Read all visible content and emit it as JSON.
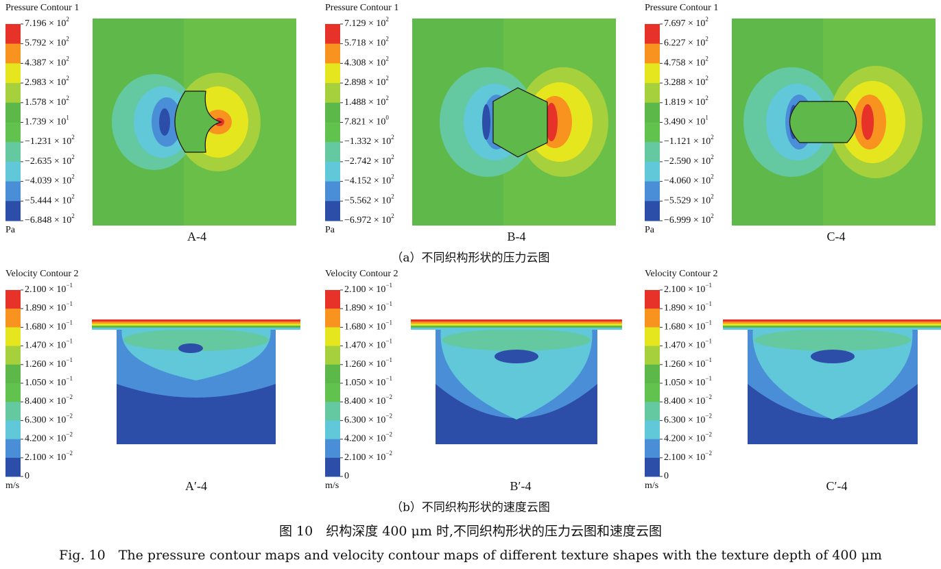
{
  "pressure": {
    "panels": [
      {
        "title": "Pressure Contour 1",
        "unit": "Pa",
        "caption": "A-4",
        "levels": [
          {
            "base": "7.196 × 10",
            "exp": "2"
          },
          {
            "base": "5.792 × 10",
            "exp": "2"
          },
          {
            "base": "4.387 × 10",
            "exp": "2"
          },
          {
            "base": "2.983 × 10",
            "exp": "2"
          },
          {
            "base": "1.578 × 10",
            "exp": "2"
          },
          {
            "base": "1.739 × 10",
            "exp": "1"
          },
          {
            "base": "−1.231 × 10",
            "exp": "2"
          },
          {
            "base": "−2.635 × 10",
            "exp": "2"
          },
          {
            "base": "−4.039 × 10",
            "exp": "2"
          },
          {
            "base": "−5.444 × 10",
            "exp": "2"
          },
          {
            "base": "−6.848 × 10",
            "exp": "2"
          }
        ]
      },
      {
        "title": "Pressure Contour 1",
        "unit": "Pa",
        "caption": "B-4",
        "levels": [
          {
            "base": "7.129 × 10",
            "exp": "2"
          },
          {
            "base": "5.718 × 10",
            "exp": "2"
          },
          {
            "base": "4.308 × 10",
            "exp": "2"
          },
          {
            "base": "2.898 × 10",
            "exp": "2"
          },
          {
            "base": "1.488 × 10",
            "exp": "2"
          },
          {
            "base": "7.821 × 10",
            "exp": "0"
          },
          {
            "base": "−1.332 × 10",
            "exp": "2"
          },
          {
            "base": "−2.742 × 10",
            "exp": "2"
          },
          {
            "base": "−4.152 × 10",
            "exp": "2"
          },
          {
            "base": "−5.562 × 10",
            "exp": "2"
          },
          {
            "base": "−6.972 × 10",
            "exp": "2"
          }
        ]
      },
      {
        "title": "Pressure Contour 1",
        "unit": "Pa",
        "caption": "C-4",
        "levels": [
          {
            "base": "7.697 × 10",
            "exp": "2"
          },
          {
            "base": "6.227 × 10",
            "exp": "2"
          },
          {
            "base": "4.758 × 10",
            "exp": "2"
          },
          {
            "base": "3.288 × 10",
            "exp": "2"
          },
          {
            "base": "1.819 × 10",
            "exp": "2"
          },
          {
            "base": "3.490 × 10",
            "exp": "1"
          },
          {
            "base": "−1.121 × 10",
            "exp": "2"
          },
          {
            "base": "−2.590 × 10",
            "exp": "2"
          },
          {
            "base": "−4.060 × 10",
            "exp": "2"
          },
          {
            "base": "−5.529 × 10",
            "exp": "2"
          },
          {
            "base": "−6.999 × 10",
            "exp": "2"
          }
        ]
      }
    ],
    "subcaption": "（a）不同织构形状的压力云图"
  },
  "velocity": {
    "panels": [
      {
        "title": "Velocity Contour 2",
        "unit": "m/s",
        "caption": "A′-4",
        "levels": [
          {
            "base": "2.100 × 10",
            "exp": "−1"
          },
          {
            "base": "1.890 × 10",
            "exp": "−1"
          },
          {
            "base": "1.680 × 10",
            "exp": "−1"
          },
          {
            "base": "1.470 × 10",
            "exp": "−1"
          },
          {
            "base": "1.260 × 10",
            "exp": "−1"
          },
          {
            "base": "1.050 × 10",
            "exp": "−1"
          },
          {
            "base": "8.400 × 10",
            "exp": "−2"
          },
          {
            "base": "6.300 × 10",
            "exp": "−2"
          },
          {
            "base": "4.200 × 10",
            "exp": "−2"
          },
          {
            "base": "2.100 × 10",
            "exp": "−2"
          },
          {
            "base": "0"
          }
        ]
      },
      {
        "title": "Velocity Contour 2",
        "unit": "m/s",
        "caption": "B′-4",
        "levels": [
          {
            "base": "2.100 × 10",
            "exp": "−1"
          },
          {
            "base": "1.890 × 10",
            "exp": "−1"
          },
          {
            "base": "1.680 × 10",
            "exp": "−1"
          },
          {
            "base": "1.470 × 10",
            "exp": "−1"
          },
          {
            "base": "1.260 × 10",
            "exp": "−1"
          },
          {
            "base": "1.050 × 10",
            "exp": "−1"
          },
          {
            "base": "8.400 × 10",
            "exp": "−2"
          },
          {
            "base": "6.300 × 10",
            "exp": "−2"
          },
          {
            "base": "4.200 × 10",
            "exp": "−2"
          },
          {
            "base": "2.100 × 10",
            "exp": "−2"
          },
          {
            "base": "0"
          }
        ]
      },
      {
        "title": "Velocity Contour 2",
        "unit": "m/s",
        "caption": "C′-4",
        "levels": [
          {
            "base": "2.100 × 10",
            "exp": "−1"
          },
          {
            "base": "1.890 × 10",
            "exp": "−1"
          },
          {
            "base": "1.680 × 10",
            "exp": "−1"
          },
          {
            "base": "1.470 × 10",
            "exp": "−1"
          },
          {
            "base": "1.260 × 10",
            "exp": "−1"
          },
          {
            "base": "1.050 × 10",
            "exp": "−1"
          },
          {
            "base": "8.400 × 10",
            "exp": "−2"
          },
          {
            "base": "6.300 × 10",
            "exp": "−2"
          },
          {
            "base": "4.200 × 10",
            "exp": "−2"
          },
          {
            "base": "2.100 × 10",
            "exp": "−2"
          },
          {
            "base": "0"
          }
        ]
      }
    ],
    "subcaption": "（b）不同织构形状的速度云图"
  },
  "figure": {
    "caption_cn": "图 10　织构深度 400 μm 时,不同织构形状的压力云图和速度云图",
    "caption_en": "Fig. 10　The pressure contour maps and velocity contour maps of different texture shapes with the texture depth of 400 μm"
  }
}
